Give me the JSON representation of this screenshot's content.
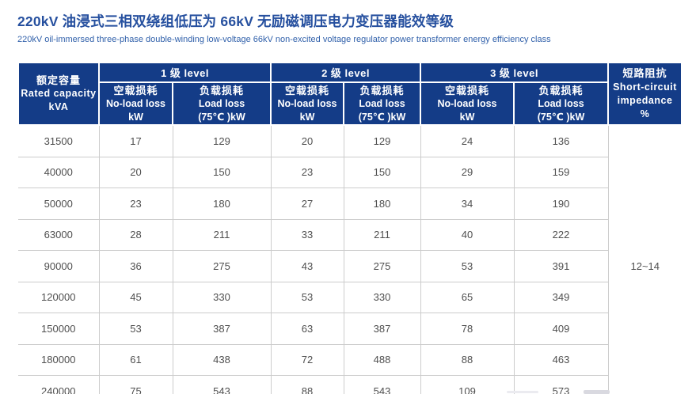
{
  "header": {
    "title_zh": "220kV 油浸式三相双绕组低压为 66kV 无励磁调压电力变压器能效等级",
    "subtitle_en": "220kV oil-immersed three-phase double-winding low-voltage 66kV non-excited voltage regulator power transformer energy efficiency class"
  },
  "colors": {
    "header_bg": "#143c87",
    "header_text": "#ffffff",
    "title_text": "#26509f",
    "subtitle_text": "#3060aa",
    "body_text": "#4f4f4f",
    "grid_line": "#cccccc",
    "bottom_line": "#b3b3b3",
    "page_bg": "#ffffff"
  },
  "table": {
    "capacity_header": {
      "zh": "额定容量",
      "en": "Rated capacity",
      "unit": "kVA"
    },
    "level_headers": [
      "1 级 level",
      "2 级 level",
      "3 级 level"
    ],
    "no_load_header": {
      "zh": "空载损耗",
      "en": "No-load loss",
      "unit": "kW"
    },
    "load_header": {
      "zh": "负载损耗",
      "en": "Load loss",
      "unit": "(75℃ )kW"
    },
    "impedance_header": {
      "zh": "短路阻抗",
      "en": "Short-circuit impedance",
      "unit": "%"
    },
    "impedance_value": "12~14",
    "rows": [
      {
        "capacity": "31500",
        "l1_noload": "17",
        "l1_load": "129",
        "l2_noload": "20",
        "l2_load": "129",
        "l3_noload": "24",
        "l3_load": "136"
      },
      {
        "capacity": "40000",
        "l1_noload": "20",
        "l1_load": "150",
        "l2_noload": "23",
        "l2_load": "150",
        "l3_noload": "29",
        "l3_load": "159"
      },
      {
        "capacity": "50000",
        "l1_noload": "23",
        "l1_load": "180",
        "l2_noload": "27",
        "l2_load": "180",
        "l3_noload": "34",
        "l3_load": "190"
      },
      {
        "capacity": "63000",
        "l1_noload": "28",
        "l1_load": "211",
        "l2_noload": "33",
        "l2_load": "211",
        "l3_noload": "40",
        "l3_load": "222"
      },
      {
        "capacity": "90000",
        "l1_noload": "36",
        "l1_load": "275",
        "l2_noload": "43",
        "l2_load": "275",
        "l3_noload": "53",
        "l3_load": "391"
      },
      {
        "capacity": "120000",
        "l1_noload": "45",
        "l1_load": "330",
        "l2_noload": "53",
        "l2_load": "330",
        "l3_noload": "65",
        "l3_load": "349"
      },
      {
        "capacity": "150000",
        "l1_noload": "53",
        "l1_load": "387",
        "l2_noload": "63",
        "l2_load": "387",
        "l3_noload": "78",
        "l3_load": "409"
      },
      {
        "capacity": "180000",
        "l1_noload": "61",
        "l1_load": "438",
        "l2_noload": "72",
        "l2_load": "488",
        "l3_noload": "88",
        "l3_load": "463"
      },
      {
        "capacity": "240000",
        "l1_noload": "75",
        "l1_load": "543",
        "l2_noload": "88",
        "l2_load": "543",
        "l3_noload": "109",
        "l3_load": "573"
      }
    ]
  }
}
